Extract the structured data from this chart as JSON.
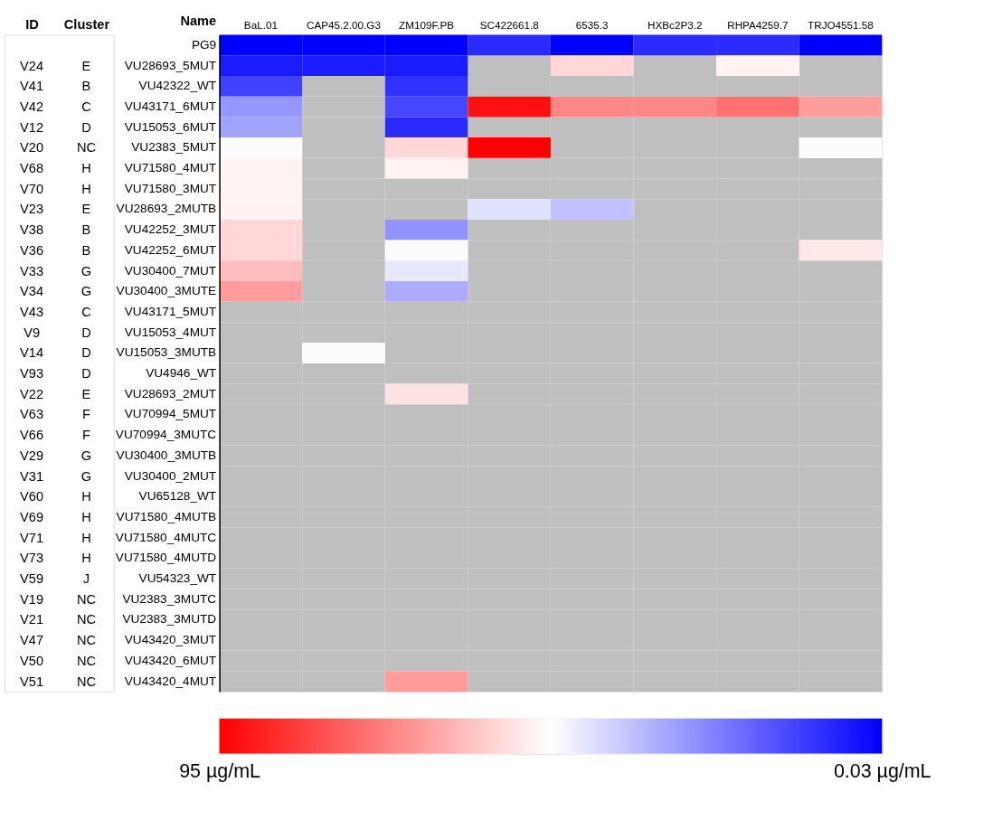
{
  "chart_data": [
    {
      "type": "other",
      "categories": [
        "ID",
        "Cluster"
      ],
      "cell_labels": [
        [
          null,
          null
        ],
        [
          "V24",
          "E"
        ],
        [
          "V41",
          "B"
        ],
        [
          "V42",
          "C"
        ],
        [
          "V12",
          "D"
        ],
        [
          "V20",
          "NC"
        ],
        [
          "V68",
          "H"
        ],
        [
          "V70",
          "H"
        ],
        [
          "V23",
          "E"
        ],
        [
          "V38",
          "B"
        ],
        [
          "V36",
          "B"
        ],
        [
          "V33",
          "G"
        ],
        [
          "V34",
          "G"
        ],
        [
          "V43",
          "C"
        ],
        [
          "V9",
          "D"
        ],
        [
          "V14",
          "D"
        ],
        [
          "V93",
          "D"
        ],
        [
          "V22",
          "E"
        ],
        [
          "V63",
          "F"
        ],
        [
          "V66",
          "F"
        ],
        [
          "V29",
          "G"
        ],
        [
          "V31",
          "G"
        ],
        [
          "V60",
          "H"
        ],
        [
          "V69",
          "H"
        ],
        [
          "V71",
          "H"
        ],
        [
          "V73",
          "H"
        ],
        [
          "V59",
          "J"
        ],
        [
          "V19",
          "NC"
        ],
        [
          "V21",
          "NC"
        ],
        [
          "V47",
          "NC"
        ],
        [
          "V50",
          "NC"
        ],
        [
          "V51",
          "NC"
        ]
      ]
    },
    {
      "type": "heatmap",
      "ylabel": "Name",
      "categories": [
        "BaL.01",
        "CAP45.2.00.G3",
        "ZM109F.PB",
        "SC422661.8",
        "6535.3",
        "HXBc2P3.2",
        "RHPA4259.7",
        "TRJO4551.58"
      ],
      "y_categories": [
        "PG9",
        "VU28693_5MUT",
        "VU42322_WT",
        "VU43171_6MUT",
        "VU15053_6MUT",
        "VU2383_5MUT",
        "VU71580_4MUT",
        "VU71580_3MUT",
        "VU28693_2MUTB",
        "VU42252_3MUT",
        "VU42252_6MUT",
        "VU30400_7MUT",
        "VU30400_3MUTE",
        "VU43171_5MUT",
        "VU15053_4MUT",
        "VU15053_3MUTB",
        "VU4946_WT",
        "VU28693_2MUT",
        "VU70994_5MUT",
        "VU70994_3MUTC",
        "VU30400_3MUTB",
        "VU30400_2MUT",
        "VU65128_WT",
        "VU71580_4MUTB",
        "VU71580_4MUTC",
        "VU71580_4MUTD",
        "VU54323_WT",
        "VU2383_3MUTC",
        "VU2383_3MUTD",
        "VU43420_3MUT",
        "VU43420_6MUT",
        "VU43420_4MUT"
      ],
      "cells": [
        [
          0.03,
          0.03,
          0.03,
          8,
          0.03,
          8,
          8,
          0.03
        ],
        [
          5,
          5,
          5,
          null,
          55,
          null,
          50,
          null
        ],
        [
          12,
          null,
          9,
          null,
          null,
          null,
          null,
          null
        ],
        [
          28,
          null,
          13,
          92,
          70,
          70,
          74,
          66
        ],
        [
          30,
          null,
          8,
          null,
          null,
          null,
          null,
          null
        ],
        [
          47,
          null,
          55,
          95,
          null,
          null,
          null,
          47
        ],
        [
          50,
          null,
          50,
          null,
          null,
          null,
          null,
          null
        ],
        [
          50,
          null,
          null,
          null,
          null,
          null,
          null,
          null
        ],
        [
          50,
          null,
          null,
          42,
          36,
          null,
          null,
          null
        ],
        [
          55,
          null,
          27,
          null,
          null,
          null,
          null,
          null
        ],
        [
          55,
          null,
          47,
          null,
          null,
          null,
          null,
          52
        ],
        [
          60,
          null,
          43,
          null,
          null,
          null,
          null,
          null
        ],
        [
          66,
          null,
          32,
          null,
          null,
          null,
          null,
          null
        ],
        [
          null,
          null,
          null,
          null,
          null,
          null,
          null,
          null
        ],
        [
          null,
          null,
          null,
          null,
          null,
          null,
          null,
          null
        ],
        [
          null,
          47,
          null,
          null,
          null,
          null,
          null,
          null
        ],
        [
          null,
          null,
          null,
          null,
          null,
          null,
          null,
          null
        ],
        [
          null,
          null,
          53,
          null,
          null,
          null,
          null,
          null
        ],
        [
          null,
          null,
          null,
          null,
          null,
          null,
          null,
          null
        ],
        [
          null,
          null,
          null,
          null,
          null,
          null,
          null,
          null
        ],
        [
          null,
          null,
          null,
          null,
          null,
          null,
          null,
          null
        ],
        [
          null,
          null,
          null,
          null,
          null,
          null,
          null,
          null
        ],
        [
          null,
          null,
          null,
          null,
          null,
          null,
          null,
          null
        ],
        [
          null,
          null,
          null,
          null,
          null,
          null,
          null,
          null
        ],
        [
          null,
          null,
          null,
          null,
          null,
          null,
          null,
          null
        ],
        [
          null,
          null,
          null,
          null,
          null,
          null,
          null,
          null
        ],
        [
          null,
          null,
          null,
          null,
          null,
          null,
          null,
          null
        ],
        [
          null,
          null,
          null,
          null,
          null,
          null,
          null,
          null
        ],
        [
          null,
          null,
          null,
          null,
          null,
          null,
          null,
          null
        ],
        [
          null,
          null,
          null,
          null,
          null,
          null,
          null,
          null
        ],
        [
          null,
          null,
          null,
          null,
          null,
          null,
          null,
          null
        ],
        [
          null,
          null,
          66,
          null,
          null,
          null,
          null,
          null
        ]
      ],
      "clim": [
        95,
        0.03
      ],
      "cticks": [
        {
          "value": 95,
          "label": "95 µg/mL"
        },
        {
          "value": 0.03,
          "label": "0.03 µg/mL"
        }
      ]
    }
  ]
}
